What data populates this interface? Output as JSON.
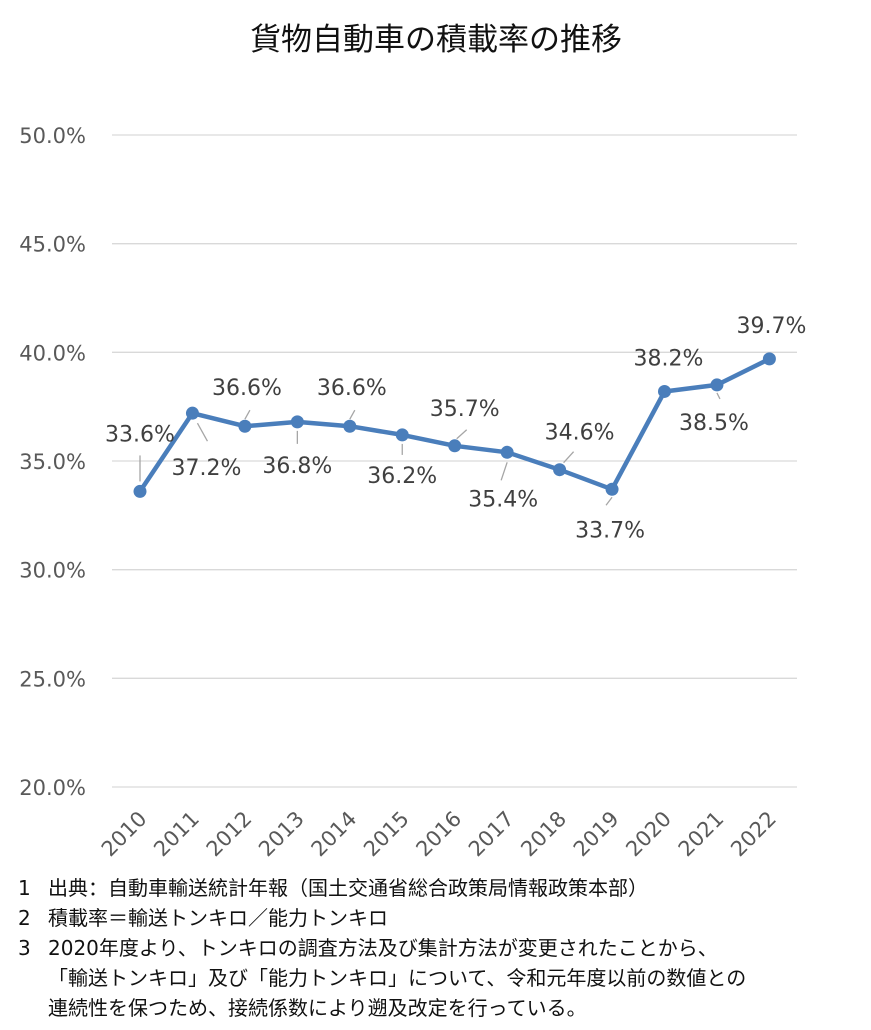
{
  "chart_data": {
    "type": "line",
    "title": "貨物自動車の積載率の推移",
    "categories": [
      "2010",
      "2011",
      "2012",
      "2013",
      "2014",
      "2015",
      "2016",
      "2017",
      "2018",
      "2019",
      "2020",
      "2021",
      "2022"
    ],
    "values": [
      33.6,
      37.2,
      36.6,
      36.8,
      36.6,
      36.2,
      35.7,
      35.4,
      34.6,
      33.7,
      38.2,
      38.5,
      39.7
    ],
    "value_labels": [
      "33.6%",
      "37.2%",
      "36.6%",
      "36.8%",
      "36.6%",
      "36.2%",
      "35.7%",
      "35.4%",
      "34.6%",
      "33.7%",
      "38.2%",
      "38.5%",
      "39.7%"
    ],
    "ylim": [
      20,
      50
    ],
    "yticks": [
      20,
      25,
      30,
      35,
      40,
      45,
      50
    ],
    "ytick_labels": [
      "20.0%",
      "25.0%",
      "30.0%",
      "35.0%",
      "40.0%",
      "45.0%",
      "50.0%"
    ],
    "grid": true,
    "legend": "none",
    "color": "#4A7EBB"
  },
  "notes": [
    {
      "num": "1",
      "text": "出典：自動車輸送統計年報（国土交通省総合政策局情報政策本部）"
    },
    {
      "num": "2",
      "text": "積載率＝輸送トンキロ／能力トンキロ"
    },
    {
      "num": "3",
      "text": "2020年度より、トンキロの調査方法及び集計方法が変更されたことから、\n「輸送トンキロ」及び「能力トンキロ」について、令和元年度以前の数値との\n連続性を保つため、接続係数により遡及改定を行っている。"
    }
  ]
}
